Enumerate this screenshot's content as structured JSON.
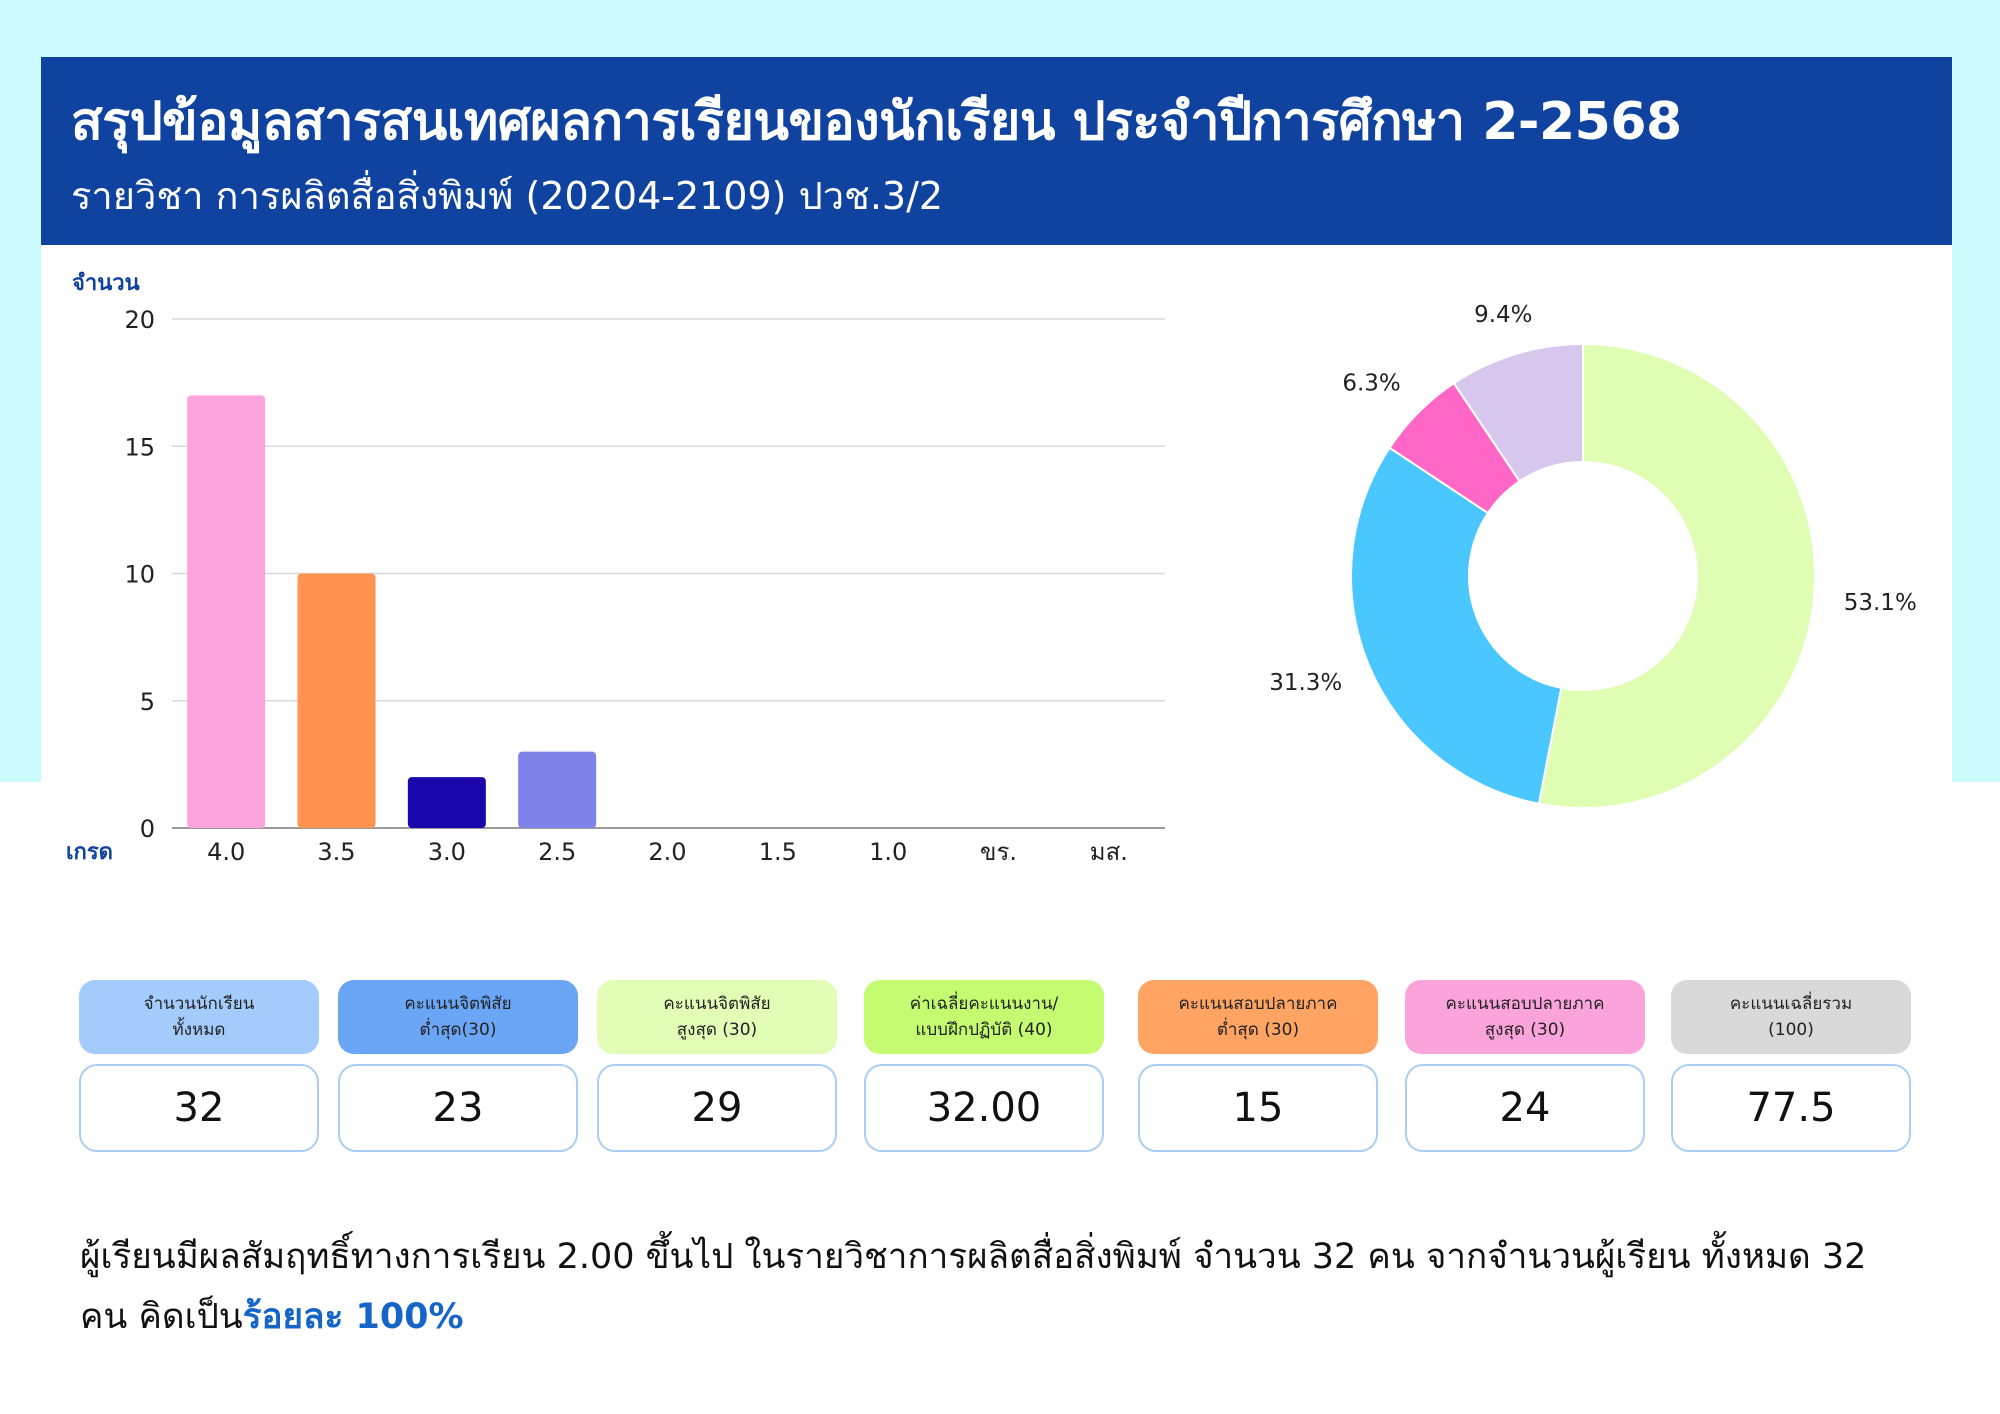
{
  "header": {
    "title": "สรุปข้อมูลสารสนเทศผลการเรียนของนักเรียน ประจำปีการศึกษา 2-2568",
    "subtitle": "รายวิชา การผลิตสื่อสิ่งพิมพ์ (20204-2109) ปวช.3/2"
  },
  "colors": {
    "header_bg": "#1043a0",
    "band_bg": "#ccfbfd",
    "axis_label": "#1043a0",
    "accent_text": "#1565c8"
  },
  "chart_data": [
    {
      "type": "bar",
      "ylabel": "จำนวน",
      "xlabel": "เกรด",
      "categories": [
        "4.0",
        "3.5",
        "3.0",
        "2.5",
        "2.0",
        "1.5",
        "1.0",
        "ขร.",
        "มส."
      ],
      "values": [
        17,
        10,
        2,
        3,
        0,
        0,
        0,
        0,
        0
      ],
      "bar_colors": [
        "#fda4dc",
        "#ff9350",
        "#1a06ab",
        "#7f83e8",
        "#cccccc",
        "#cccccc",
        "#cccccc",
        "#cccccc",
        "#cccccc"
      ],
      "ylim": [
        0,
        20
      ],
      "yticks": [
        0,
        5,
        10,
        15,
        20
      ],
      "grid": true
    },
    {
      "type": "pie",
      "style": "donut",
      "slices": [
        {
          "value": 53.1,
          "label": "53.1%",
          "color": "#dffeb4"
        },
        {
          "value": 31.3,
          "label": "31.3%",
          "color": "#4bc7ff"
        },
        {
          "value": 6.3,
          "label": "6.3%",
          "color": "#ff66c6"
        },
        {
          "value": 9.4,
          "label": "9.4%",
          "color": "#d8c7ec"
        }
      ]
    }
  ],
  "stats": [
    {
      "label": "จำนวนนักเรียน\nทั้งหมด",
      "value": "32",
      "color": "#a3cbfb"
    },
    {
      "label": "คะแนนจิตพิสัย\nต่ำสุด(30)",
      "value": "23",
      "color": "#6aa6f5"
    },
    {
      "label": "คะแนนจิตพิสัย\nสูงสุด (30)",
      "value": "29",
      "color": "#e1fdb6"
    },
    {
      "label": "ค่าเฉลี่ยคะแนนงาน/\nแบบฝึกปฏิบัติ (40)",
      "value": "32.00",
      "color": "#c4fb71"
    },
    {
      "label": "คะแนนสอบปลายภาค\nต่ำสุด (30)",
      "value": "15",
      "color": "#ffa463"
    },
    {
      "label": "คะแนนสอบปลายภาค\nสูงสุด (30)",
      "value": "24",
      "color": "#fba4dc"
    },
    {
      "label": "คะแนนเฉลี่ยรวม\n(100)",
      "value": "77.5",
      "color": "#d9d9d9"
    }
  ],
  "summary": {
    "text": "ผู้เรียนมีผลสัมฤทธิ์ทางการเรียน 2.00 ขึ้นไป ในรายวิชาการผลิตสื่อสิ่งพิมพ์ จำนวน 32 คน จากจำนวนผู้เรียน ทั้งหมด 32 คน คิดเป็น",
    "highlight": "ร้อยละ 100%"
  }
}
